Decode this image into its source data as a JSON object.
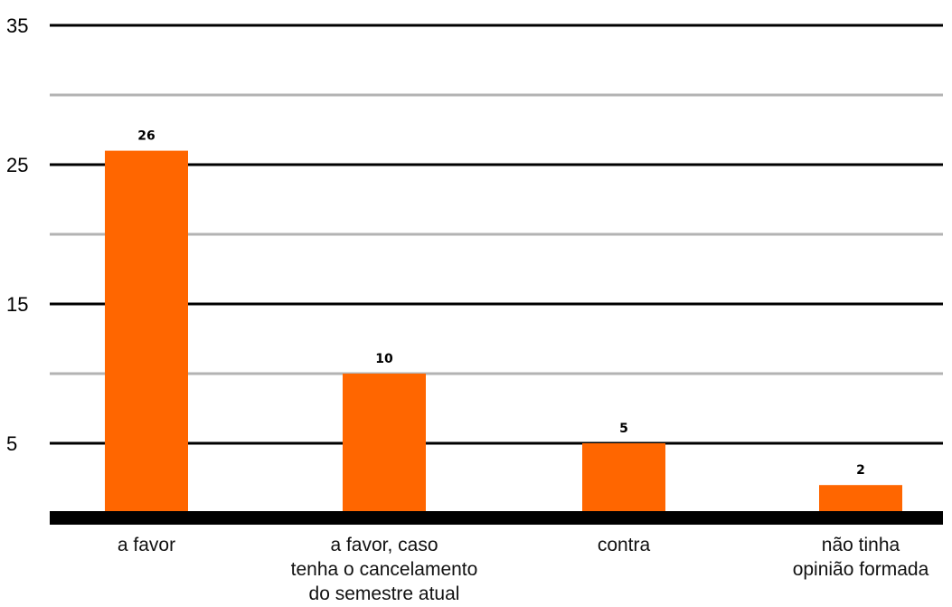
{
  "chart_data": {
    "type": "bar",
    "title": "",
    "xlabel": "",
    "ylabel": "",
    "categories": [
      [
        "a favor"
      ],
      [
        "a favor, caso",
        "tenha o cancelamento",
        "do semestre atual"
      ],
      [
        "contra"
      ],
      [
        "não tinha",
        "opinião formada"
      ]
    ],
    "values": [
      26,
      10,
      5,
      2
    ],
    "data_labels": [
      "26",
      "10",
      "5",
      "2"
    ],
    "ylim": [
      0,
      35
    ],
    "yticks": [
      {
        "value": 5,
        "label": "5"
      },
      {
        "value": 15,
        "label": "15"
      },
      {
        "value": 25,
        "label": "25"
      },
      {
        "value": 35,
        "label": "35"
      }
    ],
    "gridlines": [
      {
        "value": 5,
        "style": "major"
      },
      {
        "value": 10,
        "style": "minor"
      },
      {
        "value": 15,
        "style": "major"
      },
      {
        "value": 20,
        "style": "minor"
      },
      {
        "value": 25,
        "style": "major"
      },
      {
        "value": 30,
        "style": "minor"
      },
      {
        "value": 35,
        "style": "major"
      }
    ],
    "grid": true,
    "legend": "none",
    "colors": {
      "bar": "#ff6600",
      "major_grid": "#000000",
      "minor_grid": "#b3b3b3",
      "baseline": "#000000"
    }
  }
}
